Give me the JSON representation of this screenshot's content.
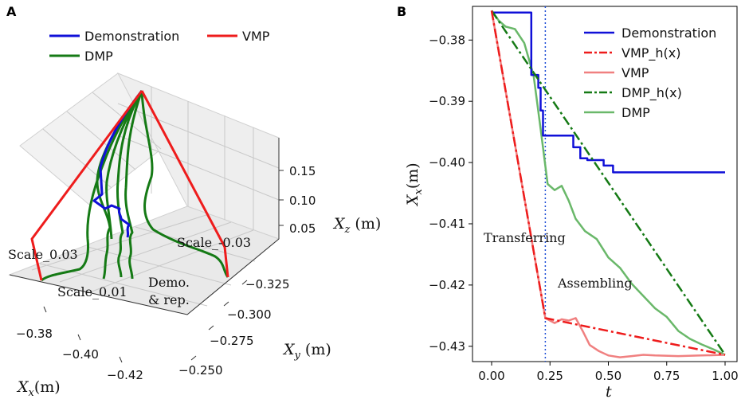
{
  "panel_a": {
    "label": "A",
    "legend": [
      "Demonstration",
      "VMP",
      "DMP"
    ],
    "axes": {
      "x": {
        "label_main": "X",
        "label_sub": "x",
        "label_unit": "(m)",
        "ticks": [
          "−0.38",
          "−0.40",
          "−0.42"
        ]
      },
      "y": {
        "label_main": "X",
        "label_sub": "y",
        "label_unit": " (m)",
        "ticks": [
          "−0.325",
          "−0.300",
          "−0.275",
          "−0.250"
        ]
      },
      "z": {
        "label_main": "X",
        "label_sub": "z",
        "label_unit": " (m)",
        "ticks": [
          "0.15",
          "0.10",
          "0.05"
        ]
      }
    },
    "annotations": {
      "scale_pos": "Scale_0.03",
      "scale_neg": "Scale_-0.03",
      "scale_small": "Scale_0.01",
      "demo_line1": "Demo.",
      "demo_line2": "& rep."
    }
  },
  "panel_b": {
    "label": "B",
    "annotations": {
      "transferring": "Transferring",
      "assembling": "Assembling"
    },
    "xlabel": "t",
    "ylabel_main": "X",
    "ylabel_sub": "x",
    "ylabel_unit": "(m)"
  },
  "colors": {
    "demonstration": "#1010d8",
    "vmp": "#ee1c1c",
    "vmp_h": "#ee1c1c",
    "vmp_light": "#f08080",
    "dmp": "#157a15",
    "dmp_h": "#157a15",
    "dmp_light": "#6ab86a",
    "vline": "#1f4fd6"
  },
  "chart_data": [
    {
      "type": "line",
      "projection": "3d",
      "title": "",
      "xlabel": "Xx(m)",
      "ylabel": "Xy (m)",
      "zlabel": "Xz (m)",
      "series": [
        {
          "name": "Demonstration",
          "color_key": "demonstration"
        },
        {
          "name": "VMP",
          "color_key": "vmp"
        },
        {
          "name": "DMP",
          "color_key": "dmp"
        }
      ]
    },
    {
      "type": "line",
      "title": "",
      "xlabel": "t",
      "ylabel": "Xx(m)",
      "xlim": [
        0.0,
        1.0
      ],
      "ylim": [
        -0.4325,
        -0.3745
      ],
      "xticks": [
        0.0,
        0.25,
        0.5,
        0.75,
        1.0
      ],
      "xtick_labels": [
        "0.00",
        "0.25",
        "0.50",
        "0.75",
        "1.00"
      ],
      "yticks": [
        -0.38,
        -0.39,
        -0.4,
        -0.41,
        -0.42,
        -0.43
      ],
      "ytick_labels": [
        "−0.38",
        "−0.39",
        "−0.40",
        "−0.41",
        "−0.42",
        "−0.43"
      ],
      "vline_x": 0.23,
      "series": [
        {
          "name": "Demonstration",
          "style": "solid",
          "color_key": "demonstration",
          "x": [
            0,
            0.17,
            0.17,
            0.2,
            0.2,
            0.21,
            0.21,
            0.22,
            0.22,
            0.35,
            0.35,
            0.38,
            0.38,
            0.41,
            0.41,
            0.48,
            0.48,
            0.52,
            0.52,
            1.0
          ],
          "y": [
            -0.3755,
            -0.3755,
            -0.3857,
            -0.3857,
            -0.3878,
            -0.3878,
            -0.3915,
            -0.3915,
            -0.3956,
            -0.3956,
            -0.3975,
            -0.3975,
            -0.3993,
            -0.3993,
            -0.3996,
            -0.3996,
            -0.4005,
            -0.4005,
            -0.4016,
            -0.4016
          ]
        },
        {
          "name": "VMP_h(x)",
          "style": "dashdot",
          "color_key": "vmp_h",
          "x": [
            0,
            0.23,
            1.0
          ],
          "y": [
            -0.3752,
            -0.4254,
            -0.4314
          ]
        },
        {
          "name": "VMP",
          "style": "solid",
          "color_key": "vmp_light",
          "x": [
            0,
            0.23,
            0.27,
            0.3,
            0.33,
            0.36,
            0.39,
            0.42,
            0.46,
            0.5,
            0.55,
            0.6,
            0.65,
            0.7,
            0.8,
            0.9,
            1.0
          ],
          "y": [
            -0.3752,
            -0.4254,
            -0.4262,
            -0.4256,
            -0.4258,
            -0.4254,
            -0.4275,
            -0.4298,
            -0.4308,
            -0.4315,
            -0.4318,
            -0.4316,
            -0.4314,
            -0.4315,
            -0.4316,
            -0.4315,
            -0.4314
          ]
        },
        {
          "name": "DMP_h(x)",
          "style": "dashdot",
          "color_key": "dmp_h",
          "x": [
            0,
            1.0
          ],
          "y": [
            -0.3752,
            -0.4314
          ]
        },
        {
          "name": "DMP",
          "style": "solid",
          "color_key": "dmp_light",
          "x": [
            0,
            0.03,
            0.06,
            0.1,
            0.14,
            0.18,
            0.21,
            0.24,
            0.27,
            0.3,
            0.33,
            0.36,
            0.4,
            0.45,
            0.5,
            0.55,
            0.6,
            0.65,
            0.7,
            0.75,
            0.8,
            0.85,
            0.9,
            0.95,
            1.0
          ],
          "y": [
            -0.3752,
            -0.3768,
            -0.3778,
            -0.3782,
            -0.3805,
            -0.3858,
            -0.3945,
            -0.4035,
            -0.4045,
            -0.4038,
            -0.4062,
            -0.4092,
            -0.4112,
            -0.4125,
            -0.4155,
            -0.4172,
            -0.4198,
            -0.4218,
            -0.4238,
            -0.4252,
            -0.4275,
            -0.4288,
            -0.4297,
            -0.4305,
            -0.4314
          ]
        }
      ]
    }
  ]
}
